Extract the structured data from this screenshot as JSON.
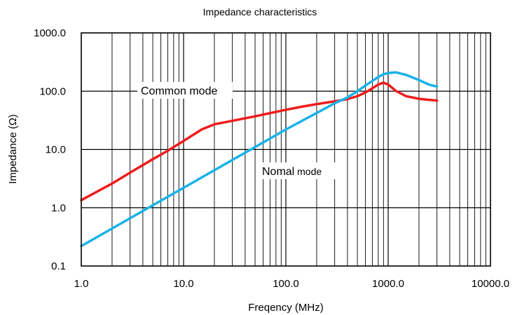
{
  "chart_data": {
    "type": "line",
    "title": "Impedance characteristics",
    "xlabel": "Freqency (MHz)",
    "ylabel": "Impedance (Ω)",
    "x_scale": "log",
    "y_scale": "log",
    "xlim": [
      1,
      10000
    ],
    "ylim": [
      0.1,
      1000
    ],
    "x_ticks": [
      1,
      10,
      100,
      1000,
      10000
    ],
    "x_tick_labels": [
      "1.0",
      "10.0",
      "100.0",
      "1000.0",
      "10000.0"
    ],
    "y_ticks": [
      0.1,
      1,
      10,
      100,
      1000
    ],
    "y_tick_labels": [
      "0.1",
      "1.0",
      "10.0",
      "100.0",
      "1000.0"
    ],
    "grid": true,
    "series": [
      {
        "name": "Common mode",
        "color": "#ee1c1c",
        "points": [
          [
            1,
            1.35
          ],
          [
            2,
            2.6
          ],
          [
            3,
            4.0
          ],
          [
            5,
            6.8
          ],
          [
            7,
            9.5
          ],
          [
            10,
            14
          ],
          [
            15,
            22
          ],
          [
            20,
            27
          ],
          [
            30,
            31
          ],
          [
            50,
            37
          ],
          [
            70,
            42
          ],
          [
            100,
            48
          ],
          [
            150,
            55
          ],
          [
            200,
            60
          ],
          [
            300,
            67
          ],
          [
            400,
            73
          ],
          [
            500,
            82
          ],
          [
            600,
            95
          ],
          [
            700,
            112
          ],
          [
            800,
            130
          ],
          [
            900,
            140
          ],
          [
            1000,
            130
          ],
          [
            1200,
            100
          ],
          [
            1500,
            82
          ],
          [
            2000,
            74
          ],
          [
            2500,
            71
          ],
          [
            3000,
            69
          ]
        ]
      },
      {
        "name": "Nomal mode",
        "color": "#19b2e8",
        "points": [
          [
            1,
            0.22
          ],
          [
            3,
            0.66
          ],
          [
            10,
            2.2
          ],
          [
            30,
            6.6
          ],
          [
            100,
            22
          ],
          [
            300,
            62
          ],
          [
            400,
            78
          ],
          [
            500,
            100
          ],
          [
            600,
            125
          ],
          [
            700,
            150
          ],
          [
            800,
            175
          ],
          [
            900,
            195
          ],
          [
            1000,
            205
          ],
          [
            1200,
            210
          ],
          [
            1500,
            190
          ],
          [
            2000,
            155
          ],
          [
            2500,
            130
          ],
          [
            3000,
            120
          ]
        ]
      }
    ],
    "annotations": [
      {
        "text_main": "Common mode",
        "text_small": ""
      },
      {
        "text_main": "Nomal",
        "text_small": " mode"
      }
    ]
  }
}
